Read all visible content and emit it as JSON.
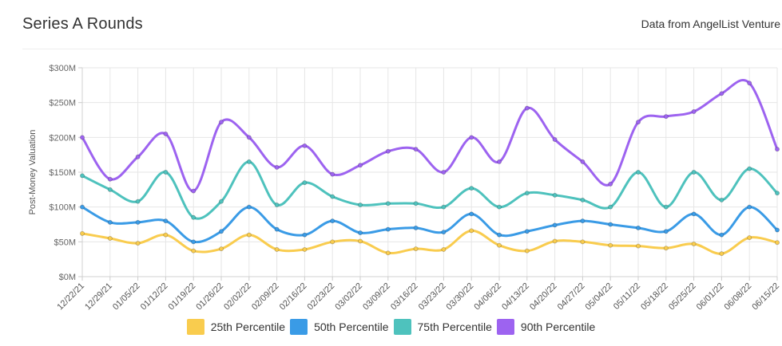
{
  "header": {
    "title": "Series A Rounds",
    "source": "Data from AngelList Venture"
  },
  "chart_data": {
    "type": "line",
    "smooth": true,
    "ylabel": "Post-Money Valuation",
    "xlabel": "",
    "ylim": [
      0,
      300
    ],
    "yticks": [
      0,
      50,
      100,
      150,
      200,
      250,
      300
    ],
    "ytick_labels": [
      "$0M",
      "$50M",
      "$100M",
      "$150M",
      "$200M",
      "$250M",
      "$300M"
    ],
    "grid": true,
    "legend_position": "bottom",
    "categories": [
      "12/22/21",
      "12/29/21",
      "01/05/22",
      "01/12/22",
      "01/19/22",
      "01/26/22",
      "02/02/22",
      "02/09/22",
      "02/16/22",
      "02/23/22",
      "03/02/22",
      "03/09/22",
      "03/16/22",
      "03/23/22",
      "03/30/22",
      "04/06/22",
      "04/13/22",
      "04/20/22",
      "04/27/22",
      "05/04/22",
      "05/11/22",
      "05/18/22",
      "05/25/22",
      "06/01/22",
      "06/08/22",
      "06/15/22"
    ],
    "series": [
      {
        "name": "25th Percentile",
        "color": "#f9cc4e",
        "values": [
          62,
          55,
          48,
          60,
          37,
          40,
          60,
          39,
          39,
          50,
          51,
          34,
          40,
          39,
          66,
          45,
          37,
          51,
          50,
          45,
          44,
          41,
          47,
          33,
          56,
          49
        ]
      },
      {
        "name": "50th Percentile",
        "color": "#3a9be6",
        "values": [
          100,
          78,
          78,
          80,
          50,
          65,
          100,
          68,
          60,
          80,
          63,
          68,
          70,
          64,
          90,
          60,
          65,
          74,
          80,
          75,
          70,
          65,
          90,
          60,
          100,
          67
        ]
      },
      {
        "name": "75th Percentile",
        "color": "#4ec2bd",
        "values": [
          145,
          125,
          108,
          150,
          85,
          108,
          165,
          103,
          135,
          115,
          103,
          105,
          105,
          100,
          127,
          100,
          120,
          117,
          110,
          100,
          150,
          100,
          150,
          110,
          155,
          120
        ]
      },
      {
        "name": "90th Percentile",
        "color": "#9d63f0",
        "values": [
          200,
          140,
          172,
          205,
          123,
          222,
          200,
          157,
          188,
          147,
          160,
          180,
          183,
          150,
          200,
          165,
          242,
          197,
          165,
          133,
          222,
          230,
          237,
          263,
          278,
          183
        ]
      }
    ]
  }
}
